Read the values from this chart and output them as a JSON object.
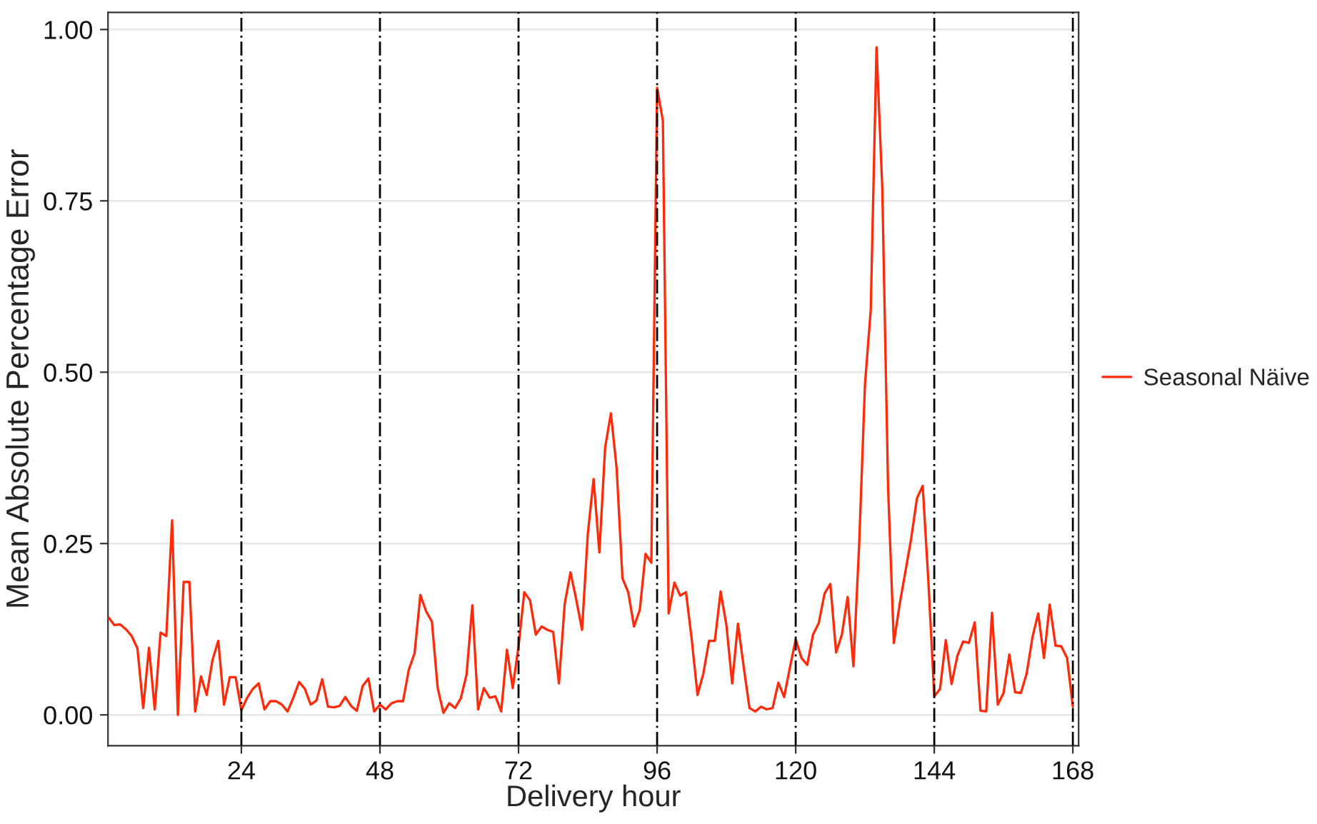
{
  "chart_data": {
    "type": "line",
    "xlabel": "Delivery hour",
    "ylabel": "Mean Absolute Percentage Error",
    "x": [
      1,
      2,
      3,
      4,
      5,
      6,
      7,
      8,
      9,
      10,
      11,
      12,
      13,
      14,
      15,
      16,
      17,
      18,
      19,
      20,
      21,
      22,
      23,
      24,
      25,
      26,
      27,
      28,
      29,
      30,
      31,
      32,
      33,
      34,
      35,
      36,
      37,
      38,
      39,
      40,
      41,
      42,
      43,
      44,
      45,
      46,
      47,
      48,
      49,
      50,
      51,
      52,
      53,
      54,
      55,
      56,
      57,
      58,
      59,
      60,
      61,
      62,
      63,
      64,
      65,
      66,
      67,
      68,
      69,
      70,
      71,
      72,
      73,
      74,
      75,
      76,
      77,
      78,
      79,
      80,
      81,
      82,
      83,
      84,
      85,
      86,
      87,
      88,
      89,
      90,
      91,
      92,
      93,
      94,
      95,
      96,
      97,
      98,
      99,
      100,
      101,
      102,
      103,
      104,
      105,
      106,
      107,
      108,
      109,
      110,
      111,
      112,
      113,
      114,
      115,
      116,
      117,
      118,
      119,
      120,
      121,
      122,
      123,
      124,
      125,
      126,
      127,
      128,
      129,
      130,
      131,
      132,
      133,
      134,
      135,
      136,
      137,
      138,
      139,
      140,
      141,
      142,
      143,
      144,
      145,
      146,
      147,
      148,
      149,
      150,
      151,
      152,
      153,
      154,
      155,
      156,
      157,
      158,
      159,
      160,
      161,
      162,
      163,
      164,
      165,
      166,
      167,
      168
    ],
    "series": [
      {
        "name": "Seasonal Näive",
        "color": "#ff2a0a",
        "values": [
          0.142,
          0.131,
          0.132,
          0.125,
          0.115,
          0.097,
          0.01,
          0.098,
          0.008,
          0.12,
          0.115,
          0.284,
          0.0,
          0.194,
          0.194,
          0.005,
          0.056,
          0.029,
          0.08,
          0.108,
          0.015,
          0.055,
          0.055,
          0.007,
          0.025,
          0.038,
          0.046,
          0.008,
          0.02,
          0.02,
          0.015,
          0.005,
          0.025,
          0.048,
          0.038,
          0.015,
          0.021,
          0.052,
          0.012,
          0.011,
          0.013,
          0.026,
          0.013,
          0.006,
          0.042,
          0.053,
          0.005,
          0.015,
          0.008,
          0.017,
          0.02,
          0.02,
          0.066,
          0.09,
          0.175,
          0.151,
          0.136,
          0.039,
          0.003,
          0.017,
          0.01,
          0.024,
          0.059,
          0.16,
          0.008,
          0.039,
          0.025,
          0.027,
          0.005,
          0.095,
          0.039,
          0.1,
          0.179,
          0.167,
          0.117,
          0.129,
          0.124,
          0.121,
          0.046,
          0.162,
          0.208,
          0.168,
          0.124,
          0.264,
          0.344,
          0.237,
          0.39,
          0.44,
          0.359,
          0.199,
          0.179,
          0.129,
          0.153,
          0.235,
          0.222,
          0.915,
          0.867,
          0.148,
          0.193,
          0.174,
          0.179,
          0.11,
          0.029,
          0.06,
          0.108,
          0.108,
          0.18,
          0.131,
          0.046,
          0.133,
          0.07,
          0.01,
          0.005,
          0.012,
          0.008,
          0.01,
          0.047,
          0.026,
          0.069,
          0.11,
          0.083,
          0.073,
          0.117,
          0.134,
          0.177,
          0.191,
          0.091,
          0.117,
          0.172,
          0.071,
          0.25,
          0.482,
          0.591,
          0.974,
          0.768,
          0.332,
          0.105,
          0.161,
          0.209,
          0.257,
          0.316,
          0.334,
          0.192,
          0.027,
          0.038,
          0.109,
          0.045,
          0.086,
          0.107,
          0.105,
          0.135,
          0.006,
          0.005,
          0.149,
          0.015,
          0.032,
          0.088,
          0.033,
          0.032,
          0.06,
          0.113,
          0.148,
          0.083,
          0.161,
          0.101,
          0.1,
          0.083,
          0.012
        ]
      }
    ],
    "xlim": [
      0.9,
      169
    ],
    "xticks": [
      24,
      48,
      72,
      96,
      120,
      144,
      168
    ],
    "ylim": [
      -0.045,
      1.025
    ],
    "yticks": [
      {
        "value": 0,
        "label": "0.00"
      },
      {
        "value": 0.25,
        "label": "0.25"
      },
      {
        "value": 0.5,
        "label": "0.50"
      },
      {
        "value": 0.75,
        "label": "0.75"
      },
      {
        "value": 1,
        "label": "1.00"
      }
    ],
    "ref_lines": [
      {
        "axis": "x",
        "value": 24,
        "color": "#000000",
        "line_style": "dashed"
      },
      {
        "axis": "x",
        "value": 48,
        "color": "#000000",
        "line_style": "dashed"
      },
      {
        "axis": "x",
        "value": 72,
        "color": "#000000",
        "line_style": "dashed"
      },
      {
        "axis": "x",
        "value": 96,
        "color": "#000000",
        "line_style": "dashed"
      },
      {
        "axis": "x",
        "value": 120,
        "color": "#000000",
        "line_style": "dashed"
      },
      {
        "axis": "x",
        "value": 144,
        "color": "#000000",
        "line_style": "dashed"
      },
      {
        "axis": "x",
        "value": 168,
        "color": "#000000",
        "line_style": "dashed"
      }
    ],
    "grid": "y",
    "legend": "right",
    "line_style": "solid",
    "marker": "none"
  }
}
